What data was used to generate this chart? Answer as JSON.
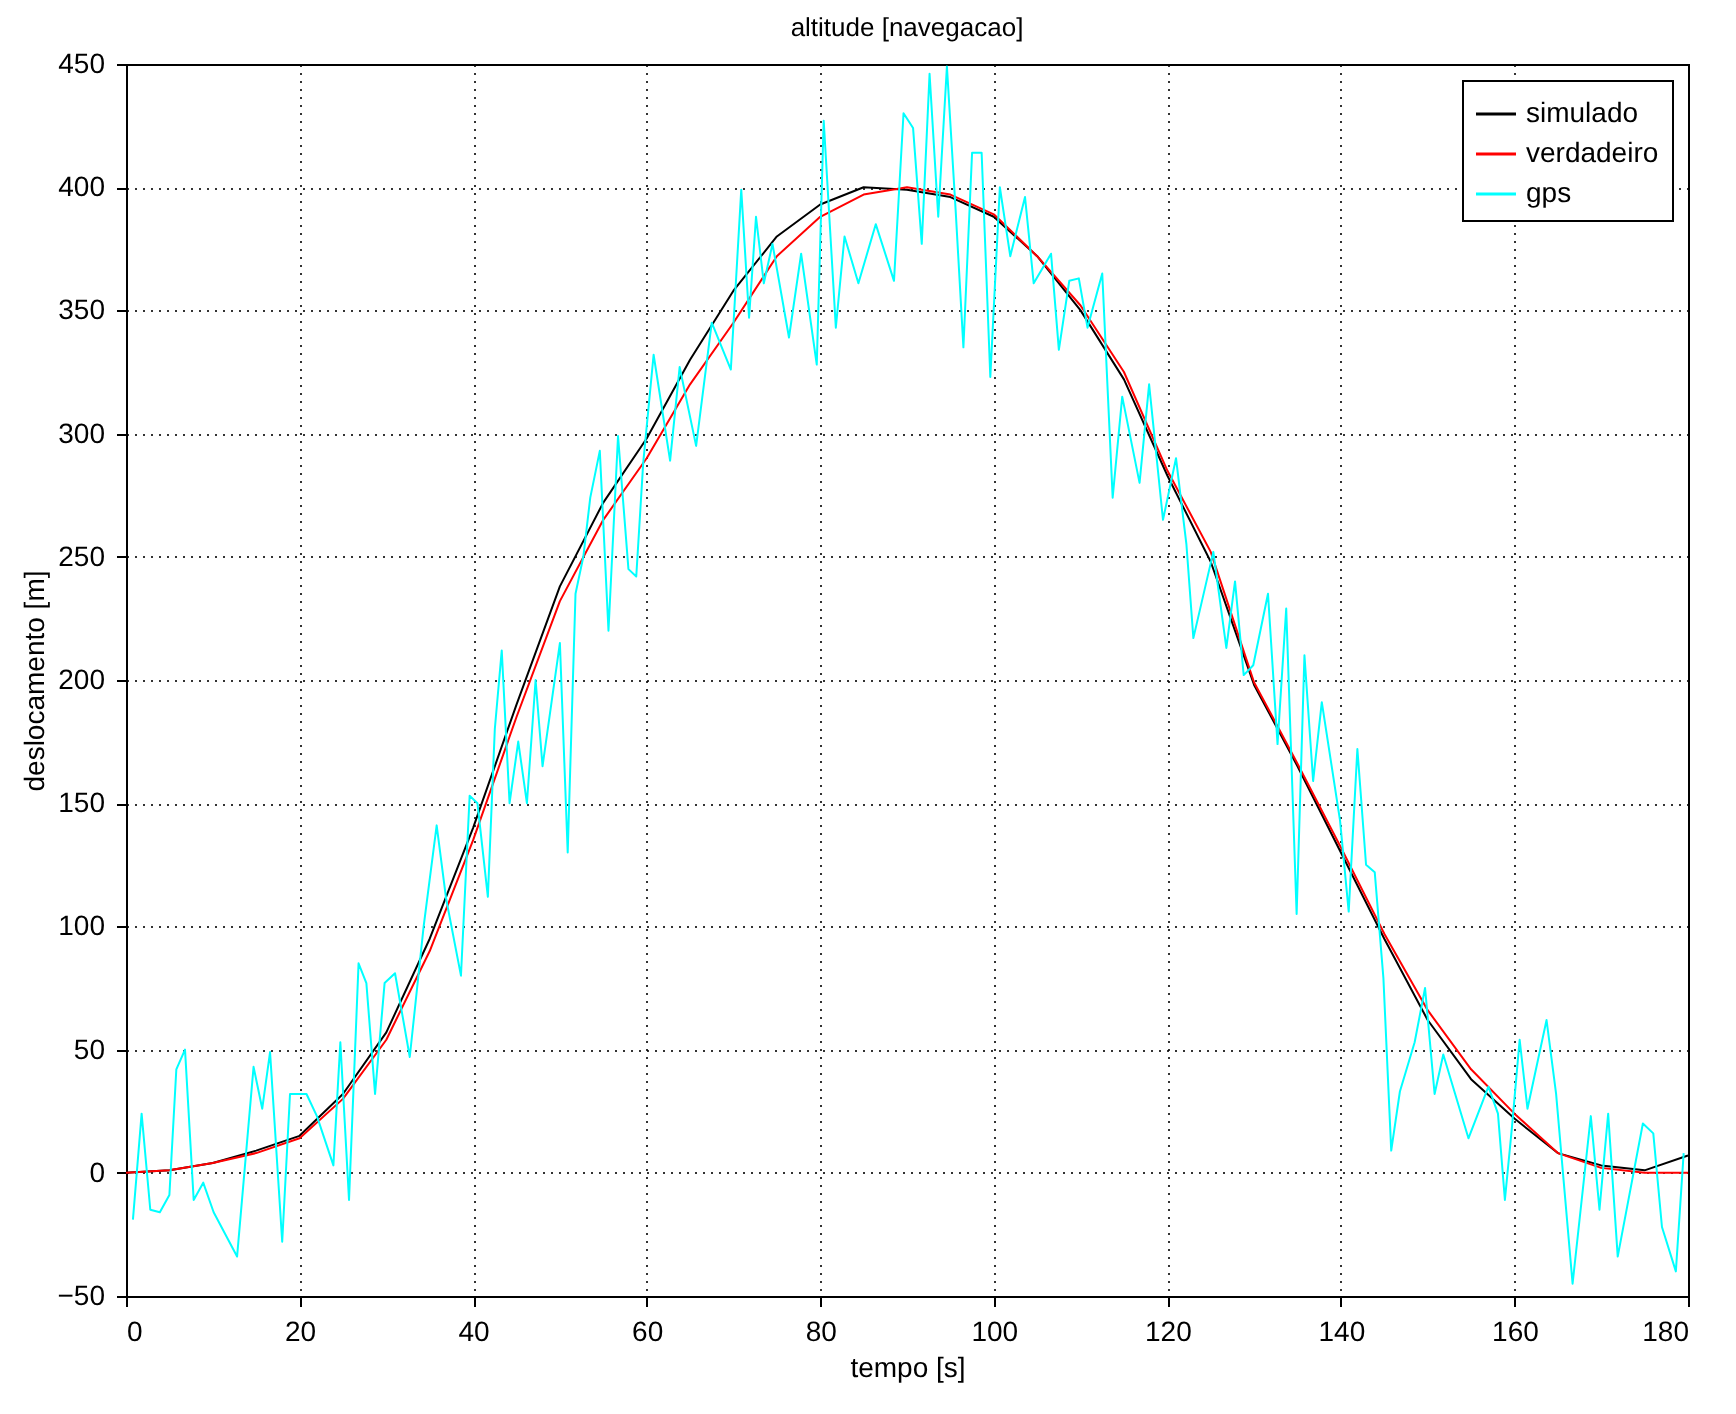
{
  "chart_data": {
    "type": "line",
    "title": "altitude [navegacao]",
    "xlabel": "tempo [s]",
    "ylabel": "deslocamento [m]",
    "xlim": [
      0,
      180
    ],
    "xticks": [
      0,
      20,
      40,
      60,
      80,
      100,
      120,
      140,
      160,
      180
    ],
    "ylim": [
      -50,
      450
    ],
    "yticks": [
      -50,
      0,
      50,
      100,
      150,
      200,
      250,
      300,
      350,
      400,
      450
    ],
    "grid": true,
    "legend": "top right",
    "line_style": "solid",
    "marker": "none",
    "series": [
      {
        "name": "simulado",
        "color": "#000000",
        "x": [
          0,
          5,
          10,
          15,
          20,
          25,
          30,
          35,
          40,
          45,
          50,
          55,
          60,
          65,
          70,
          75,
          80,
          85,
          90,
          95,
          100,
          105,
          110,
          115,
          120,
          125,
          130,
          135,
          140,
          145,
          150,
          155,
          160,
          165,
          170,
          175,
          180
        ],
        "values": [
          0,
          1,
          4,
          9,
          15,
          32,
          57,
          95,
          140,
          190,
          238,
          272,
          298,
          330,
          358,
          380,
          393,
          400,
          399,
          396,
          388,
          372,
          350,
          322,
          283,
          248,
          198,
          165,
          130,
          95,
          62,
          38,
          22,
          8,
          3,
          1,
          7
        ]
      },
      {
        "name": "verdadeiro",
        "color": "#ff0000",
        "x": [
          0,
          5,
          10,
          15,
          20,
          25,
          30,
          35,
          40,
          45,
          50,
          55,
          60,
          65,
          70,
          75,
          80,
          85,
          90,
          95,
          100,
          105,
          110,
          115,
          120,
          125,
          130,
          135,
          140,
          145,
          150,
          155,
          160,
          165,
          170,
          175,
          180
        ],
        "values": [
          0,
          1,
          4,
          8,
          14,
          30,
          54,
          90,
          135,
          185,
          232,
          265,
          290,
          320,
          345,
          372,
          388,
          397,
          400,
          397,
          389,
          372,
          352,
          325,
          285,
          252,
          199,
          166,
          132,
          97,
          66,
          42,
          24,
          8,
          2,
          0,
          0
        ]
      },
      {
        "name": "gps",
        "color": "#00ffff",
        "x": [
          0.8,
          1.8,
          2.8,
          3.9,
          5,
          5.8,
          6.8,
          7.8,
          8.9,
          10.1,
          12.8,
          14.7,
          15.7,
          16.6,
          18,
          18.9,
          20.8,
          22,
          23.9,
          24.7,
          25.7,
          26.8,
          27.7,
          28.7,
          29.8,
          31,
          32.7,
          34.3,
          35.8,
          36.9,
          38.6,
          39.6,
          40.5,
          41.7,
          42.5,
          43.3,
          44.2,
          45.2,
          46.2,
          47.2,
          48,
          49,
          50,
          50.9,
          51.8,
          52.7,
          53.5,
          54.6,
          55.6,
          56.7,
          57.9,
          58.8,
          59.6,
          60.8,
          62.7,
          63.8,
          65.7,
          67.5,
          69.7,
          70.9,
          71.8,
          72.6,
          73.5,
          74.5,
          76.4,
          77.8,
          79.6,
          80.4,
          81.8,
          82.8,
          84.4,
          86.4,
          88.5,
          89.6,
          90.7,
          91.7,
          92.6,
          93.6,
          94.6,
          95.6,
          96.5,
          97.5,
          98.6,
          99.6,
          100.7,
          101.9,
          103.6,
          104.6,
          106.6,
          107.5,
          108.7,
          109.8,
          110.8,
          112.5,
          113.7,
          114.8,
          116.8,
          117.9,
          119.5,
          121,
          122.2,
          123,
          125.3,
          126.8,
          127.8,
          128.8,
          129.9,
          131.6,
          132.7,
          133.7,
          134.9,
          135.8,
          136.8,
          137.8,
          139.9,
          140.9,
          141.9,
          142.9,
          143.9,
          144.9,
          145.8,
          146.8,
          148.5,
          149.7,
          150.8,
          151.8,
          154.7,
          157,
          158.1,
          158.9,
          159.7,
          160.6,
          161.5,
          163.7,
          164.8,
          166.7,
          168.8,
          169.8,
          170.8,
          171.9,
          174.8,
          176,
          177,
          178.6,
          179.5
        ],
        "values": [
          -19,
          24,
          -15,
          -16,
          -9,
          42,
          50,
          -11,
          -4,
          -16,
          -34,
          43,
          26,
          49,
          -28,
          32,
          32,
          23,
          3,
          53,
          -11,
          85,
          77,
          32,
          77,
          81,
          47,
          100,
          141,
          111,
          80,
          153,
          150,
          112,
          180,
          212,
          150,
          175,
          150,
          200,
          165,
          190,
          215,
          130,
          235,
          250,
          274,
          293,
          220,
          299,
          245,
          242,
          288,
          332,
          289,
          327,
          295,
          345,
          326,
          399,
          347,
          388,
          361,
          377,
          339,
          373,
          328,
          427,
          343,
          380,
          361,
          385,
          362,
          430,
          424,
          377,
          446,
          388,
          449,
          391,
          335,
          414,
          414,
          323,
          400,
          372,
          396,
          361,
          373,
          334,
          362,
          363,
          343,
          365,
          274,
          315,
          280,
          320,
          265,
          290,
          255,
          217,
          252,
          213,
          240,
          202,
          206,
          235,
          174,
          229,
          105,
          210,
          159,
          191,
          143,
          106,
          172,
          125,
          122,
          79,
          9,
          33,
          53,
          75,
          32,
          48,
          14,
          35,
          24,
          -11,
          18,
          54,
          26,
          62,
          32,
          -45,
          23,
          -15,
          24,
          -34,
          20,
          16,
          -22,
          -40,
          8
        ]
      }
    ]
  }
}
